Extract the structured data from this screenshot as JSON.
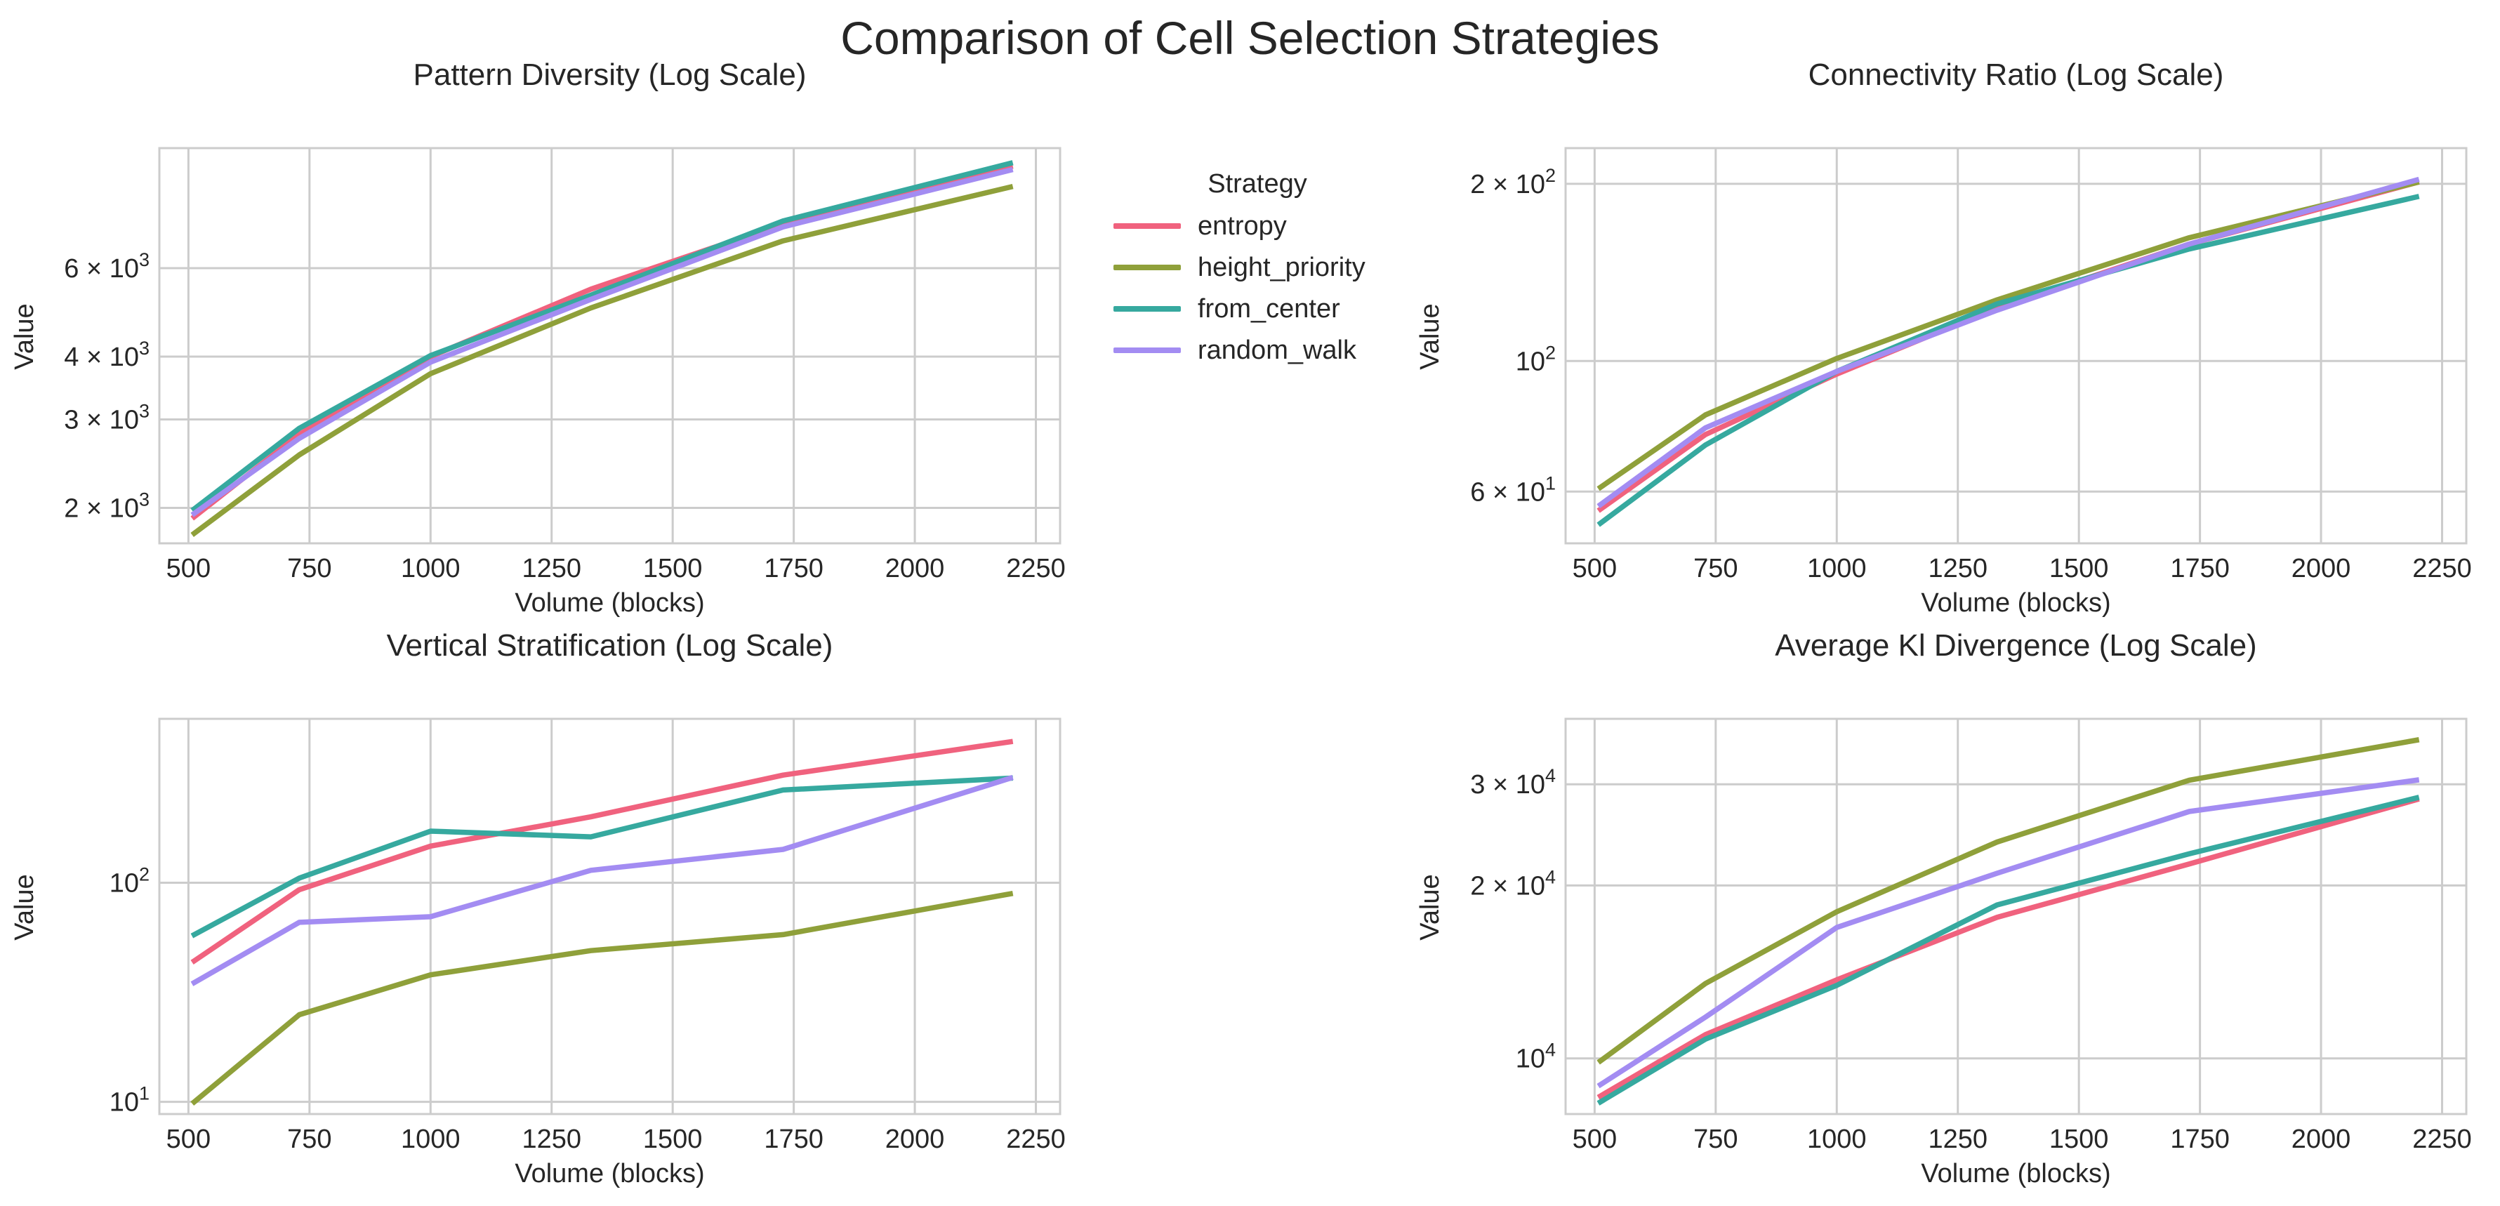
{
  "suptitle": "Comparison of Cell Selection Strategies",
  "legend": {
    "title": "Strategy",
    "items": [
      {
        "label": "entropy",
        "color": "#f0627e"
      },
      {
        "label": "height_priority",
        "color": "#8fa03a"
      },
      {
        "label": "from_center",
        "color": "#36a99f"
      },
      {
        "label": "random_walk",
        "color": "#a38cf2"
      }
    ]
  },
  "chart_data": [
    {
      "type": "line",
      "title": "Pattern Diversity (Log Scale)",
      "xlabel": "Volume (blocks)",
      "ylabel": "Value",
      "yscale": "log",
      "grid": true,
      "xlim": [
        440,
        2300
      ],
      "ylim": [
        1700,
        10400
      ],
      "xticks": [
        500,
        750,
        1000,
        1250,
        1500,
        1750,
        2000,
        2250
      ],
      "xtick_labels": [
        "500",
        "750",
        "1000",
        "1250",
        "1500",
        "1750",
        "2000",
        "2250"
      ],
      "yticks": [
        {
          "value": 2000,
          "base": "2 × 10",
          "exp": "3"
        },
        {
          "value": 3000,
          "base": "3 × 10",
          "exp": "3"
        },
        {
          "value": 4000,
          "base": "4 × 10",
          "exp": "3"
        },
        {
          "value": 6000,
          "base": "6 × 10",
          "exp": "3"
        }
      ],
      "x": [
        512,
        729,
        1000,
        1331,
        1728,
        2197
      ],
      "series": [
        {
          "name": "entropy",
          "values": [
            1920,
            2800,
            4000,
            5450,
            7350,
            9550
          ]
        },
        {
          "name": "height_priority",
          "values": [
            1780,
            2550,
            3700,
            5000,
            6800,
            8700
          ]
        },
        {
          "name": "from_center",
          "values": [
            1990,
            2880,
            4020,
            5300,
            7450,
            9700
          ]
        },
        {
          "name": "random_walk",
          "values": [
            1950,
            2750,
            3900,
            5200,
            7250,
            9400
          ]
        }
      ]
    },
    {
      "type": "line",
      "title": "Connectivity Ratio (Log Scale)",
      "xlabel": "Volume (blocks)",
      "ylabel": "Value",
      "yscale": "log",
      "grid": true,
      "xlim": [
        440,
        2300
      ],
      "ylim": [
        49,
        230
      ],
      "xticks": [
        500,
        750,
        1000,
        1250,
        1500,
        1750,
        2000,
        2250
      ],
      "xtick_labels": [
        "500",
        "750",
        "1000",
        "1250",
        "1500",
        "1750",
        "2000",
        "2250"
      ],
      "yticks": [
        {
          "value": 60,
          "base": "6 × 10",
          "exp": "1"
        },
        {
          "value": 100,
          "base": "10",
          "exp": "2"
        },
        {
          "value": 200,
          "base": "2 × 10",
          "exp": "2"
        }
      ],
      "x": [
        512,
        729,
        1000,
        1331,
        1728,
        2197
      ],
      "series": [
        {
          "name": "entropy",
          "values": [
            56,
            75,
            95,
            123,
            158,
            201
          ]
        },
        {
          "name": "height_priority",
          "values": [
            61,
            81,
            101,
            127,
            162,
            201
          ]
        },
        {
          "name": "from_center",
          "values": [
            53,
            72,
            96,
            125,
            155,
            190
          ]
        },
        {
          "name": "random_walk",
          "values": [
            57,
            77,
            96,
            122,
            158,
            203
          ]
        }
      ]
    },
    {
      "type": "line",
      "title": "Vertical Stratification (Log Scale)",
      "xlabel": "Volume (blocks)",
      "ylabel": "Value",
      "yscale": "log",
      "grid": true,
      "xlim": [
        440,
        2300
      ],
      "ylim": [
        8.8,
        560
      ],
      "xticks": [
        500,
        750,
        1000,
        1250,
        1500,
        1750,
        2000,
        2250
      ],
      "xtick_labels": [
        "500",
        "750",
        "1000",
        "1250",
        "1500",
        "1750",
        "2000",
        "2250"
      ],
      "yticks": [
        {
          "value": 10,
          "base": "10",
          "exp": "1"
        },
        {
          "value": 100,
          "base": "10",
          "exp": "2"
        }
      ],
      "x": [
        512,
        729,
        1000,
        1331,
        1728,
        2197
      ],
      "series": [
        {
          "name": "entropy",
          "values": [
            44,
            93,
            147,
            200,
            310,
            440
          ]
        },
        {
          "name": "height_priority",
          "values": [
            10,
            25,
            38,
            49,
            58,
            89
          ]
        },
        {
          "name": "from_center",
          "values": [
            58,
            105,
            172,
            162,
            265,
            300
          ]
        },
        {
          "name": "random_walk",
          "values": [
            35,
            66,
            70,
            114,
            142,
            300
          ]
        }
      ]
    },
    {
      "type": "line",
      "title": "Average Kl Divergence (Log Scale)",
      "xlabel": "Volume (blocks)",
      "ylabel": "Value",
      "yscale": "log",
      "grid": true,
      "xlim": [
        440,
        2300
      ],
      "ylim": [
        8000,
        39000
      ],
      "xticks": [
        500,
        750,
        1000,
        1250,
        1500,
        1750,
        2000,
        2250
      ],
      "xtick_labels": [
        "500",
        "750",
        "1000",
        "1250",
        "1500",
        "1750",
        "2000",
        "2250"
      ],
      "yticks": [
        {
          "value": 10000,
          "base": "10",
          "exp": "4"
        },
        {
          "value": 20000,
          "base": "2 × 10",
          "exp": "4"
        },
        {
          "value": 30000,
          "base": "3 × 10",
          "exp": "4"
        }
      ],
      "x": [
        512,
        729,
        1000,
        1331,
        1728,
        2197
      ],
      "series": [
        {
          "name": "entropy",
          "values": [
            8600,
            11000,
            13700,
            17600,
            21800,
            28200
          ]
        },
        {
          "name": "height_priority",
          "values": [
            9900,
            13500,
            18000,
            23800,
            30500,
            35800
          ]
        },
        {
          "name": "from_center",
          "values": [
            8400,
            10800,
            13400,
            18500,
            22700,
            28400
          ]
        },
        {
          "name": "random_walk",
          "values": [
            9000,
            11800,
            16900,
            21000,
            26900,
            30500
          ]
        }
      ]
    }
  ]
}
